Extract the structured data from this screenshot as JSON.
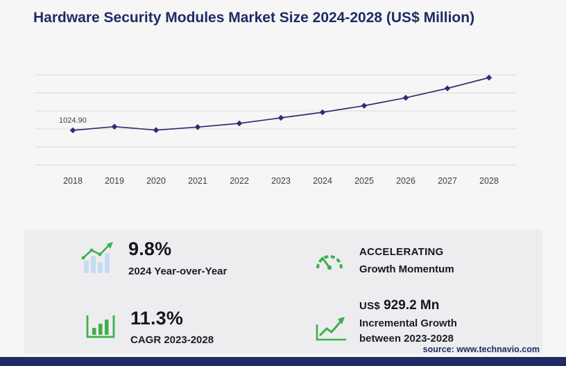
{
  "page": {
    "title": "Hardware Security Modules Market Size 2024-2028 (US$ Million)",
    "source": "source: www.technavio.com"
  },
  "colors": {
    "navy": "#1f2b63",
    "line": "#2d2f72",
    "green": "#3db04b",
    "light_blue_bar": "#c3dcf2",
    "grid": "#d9d9db",
    "card_bg": "#ededef",
    "page_bg": "#f6f6f7"
  },
  "chart_data": {
    "type": "line",
    "title": "Hardware Security Modules Market Size 2024-2028 (US$ Million)",
    "x": [
      "2018",
      "2019",
      "2020",
      "2021",
      "2022",
      "2023",
      "2024",
      "2025",
      "2026",
      "2027",
      "2028"
    ],
    "series": [
      {
        "name": "Market Size (US$ Million)",
        "values": [
          1024.9,
          1110,
          1030,
          1100,
          1185,
          1312.5,
          1441.1,
          1592.4,
          1775.5,
          1993.9,
          2241.7
        ]
      }
    ],
    "data_labels": [
      {
        "x": "2018",
        "text": "1024.90"
      }
    ],
    "ylim": [
      900,
      2350
    ],
    "grid": "horizontal",
    "legend": "none",
    "marker": "diamond",
    "line_color": "#2d2f72"
  },
  "stats": {
    "yoy": {
      "value": "9.8%",
      "label": "2024 Year-over-Year"
    },
    "momentum": {
      "line1": "ACCELERATING",
      "line2": "Growth Momentum"
    },
    "cagr": {
      "value": "11.3%",
      "label": "CAGR 2023-2028"
    },
    "incremental": {
      "currency": "US$",
      "amount": "929.2 Mn",
      "line1": "Incremental Growth",
      "line2": "between 2023-2028"
    }
  }
}
